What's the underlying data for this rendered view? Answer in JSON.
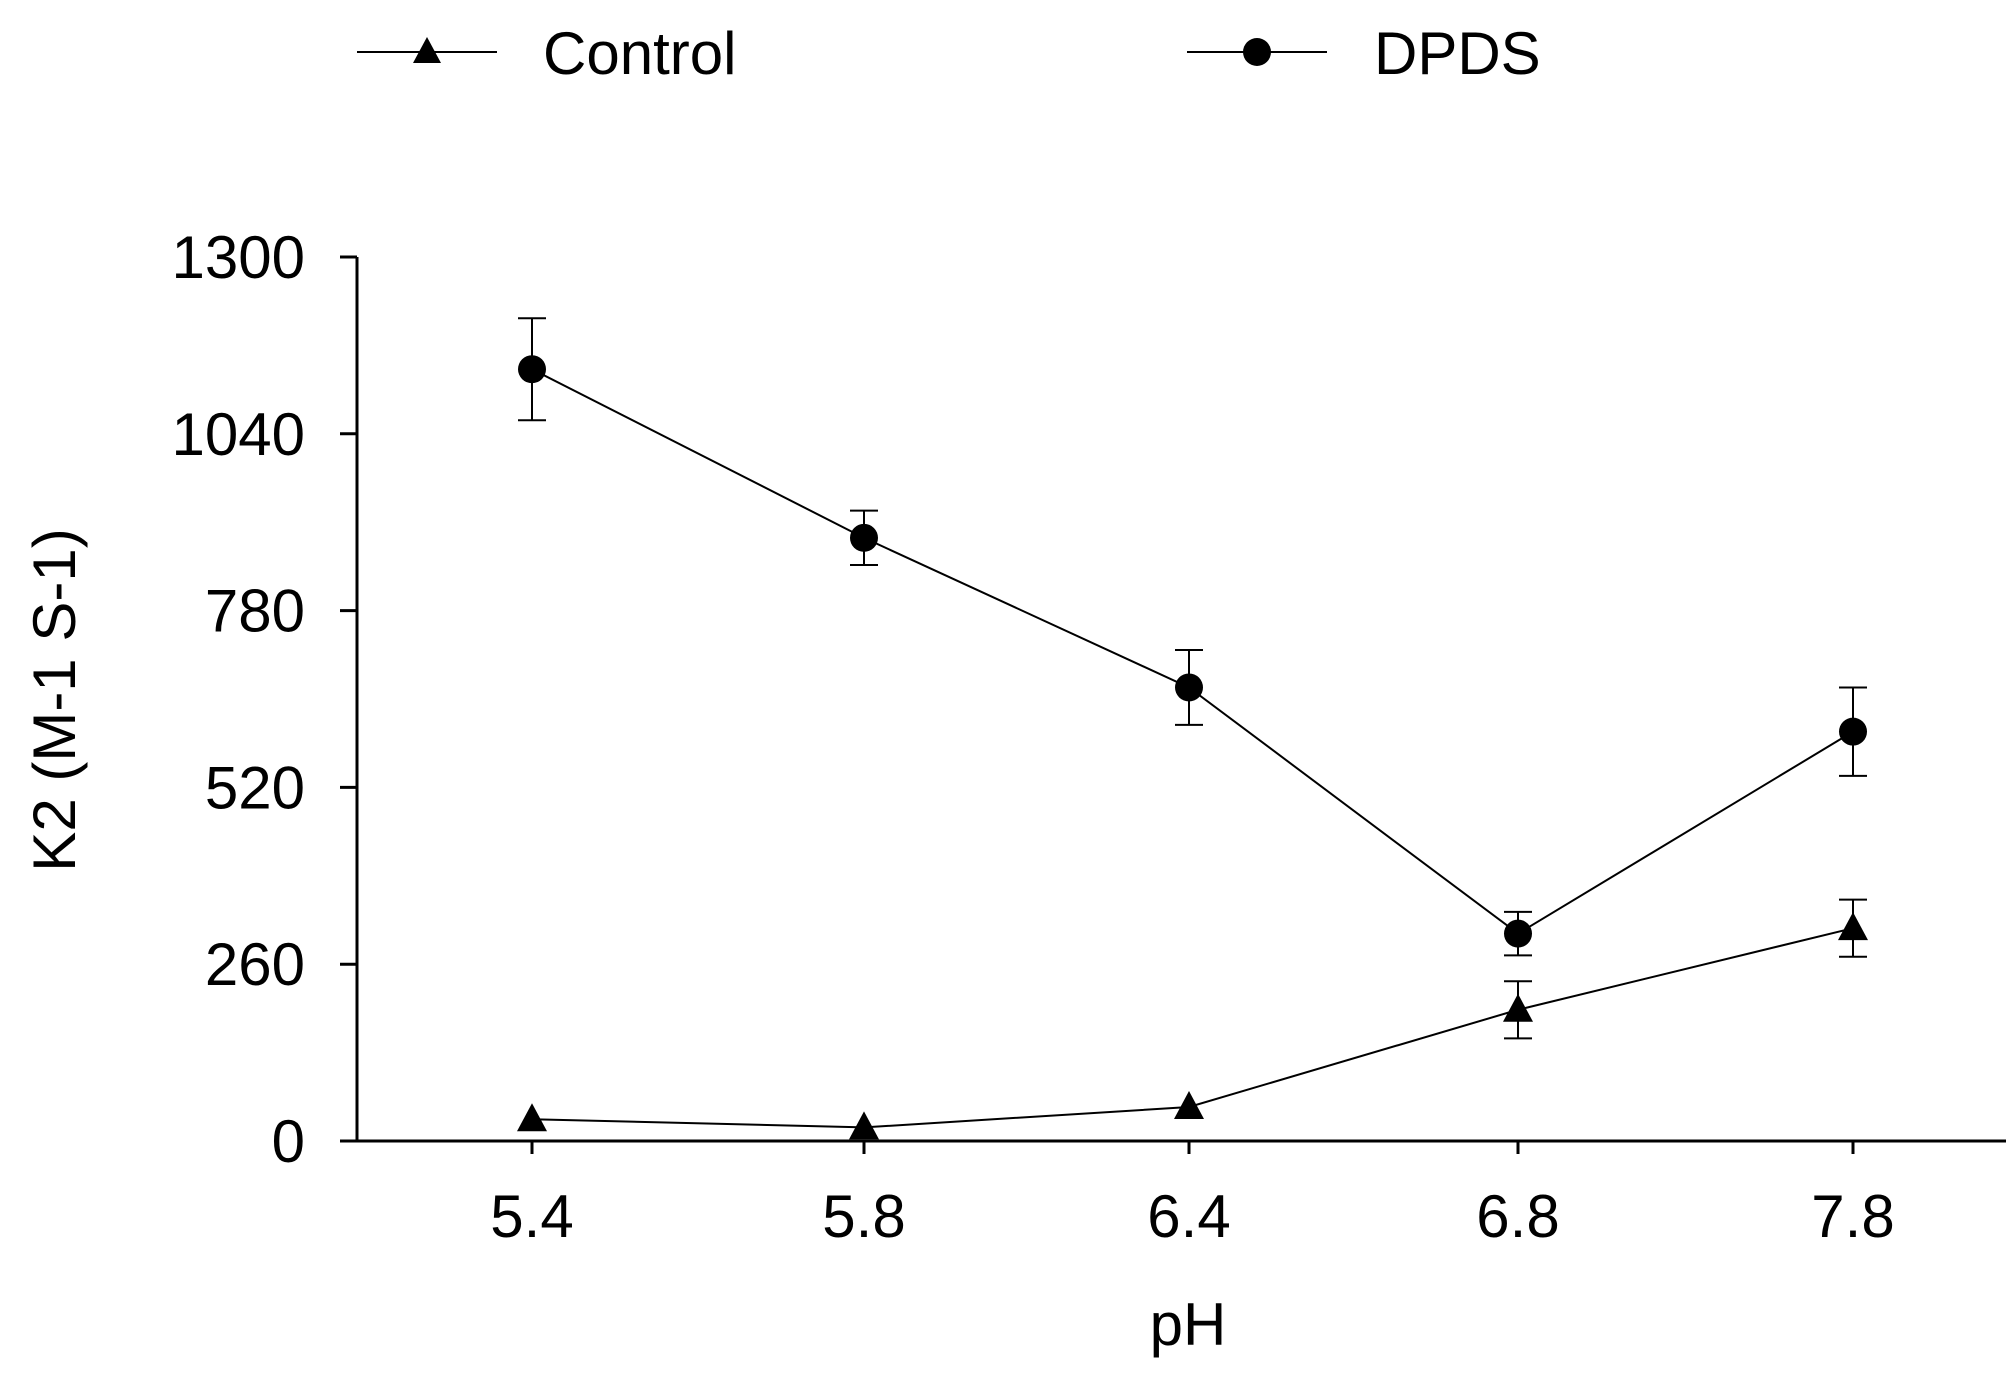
{
  "chart_data": {
    "type": "line",
    "title": "",
    "xlabel": "pH",
    "ylabel": "K2 (M-1 S-1)",
    "categories": [
      "5.4",
      "5.8",
      "6.4",
      "6.8",
      "7.8"
    ],
    "ylim": [
      0,
      1300
    ],
    "yticks": [
      0,
      260,
      520,
      780,
      1040,
      1300
    ],
    "ytick_labels": [
      "0",
      "260",
      "520",
      "780",
      "1040",
      "1300"
    ],
    "grid": false,
    "legend_position": "top",
    "series": [
      {
        "name": "Control",
        "marker": "triangle",
        "values": [
          32,
          20,
          50,
          193,
          313
        ],
        "error": [
          0,
          0,
          0,
          42,
          42
        ]
      },
      {
        "name": "DPDS",
        "marker": "circle",
        "values": [
          1135,
          887,
          667,
          305,
          602
        ],
        "error": [
          75,
          40,
          55,
          32,
          65
        ]
      }
    ]
  },
  "colors": {
    "ink": "#000000",
    "background": "#ffffff"
  }
}
